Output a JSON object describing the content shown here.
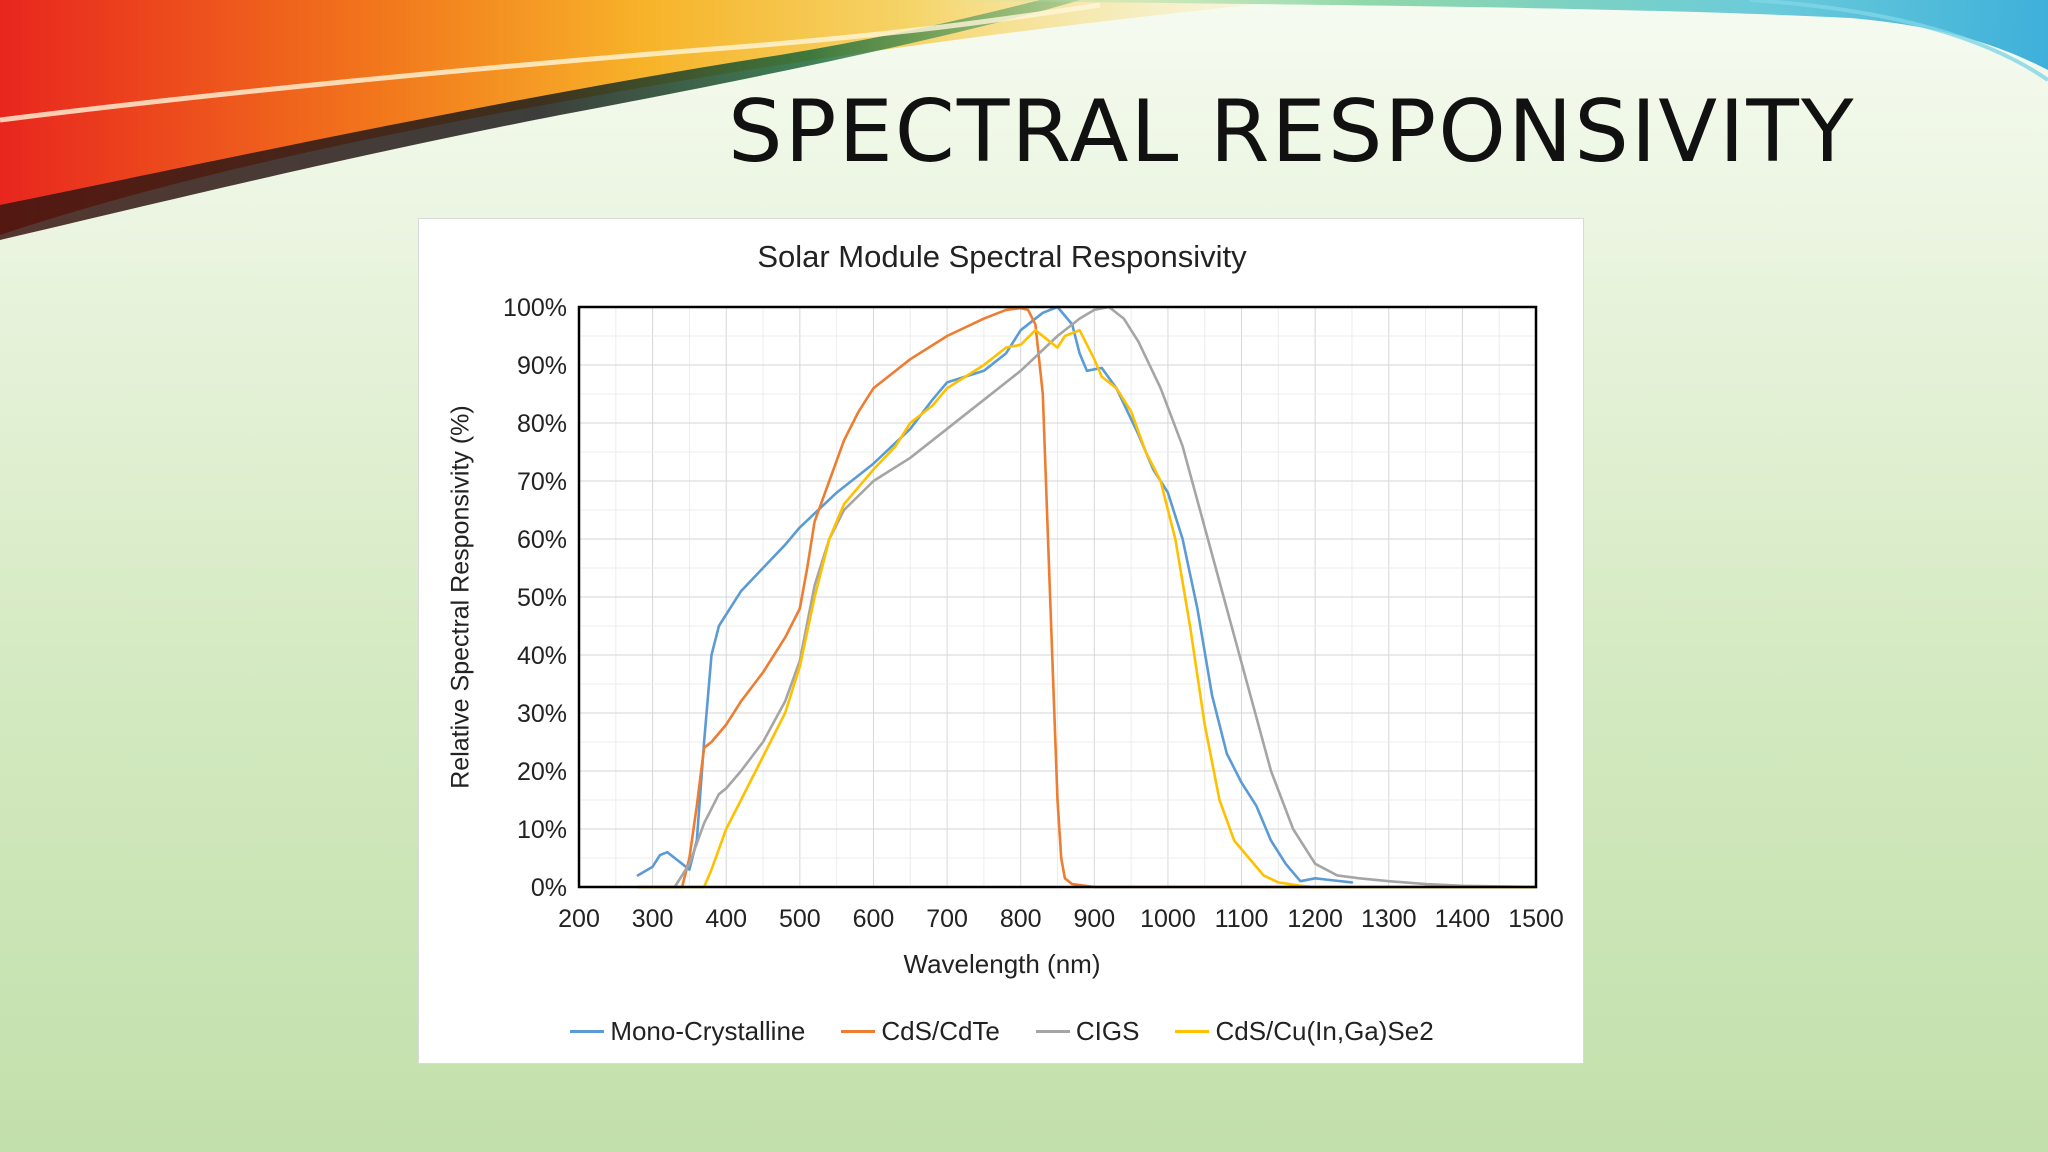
{
  "slide": {
    "title": "SPECTRAL RESPONSIVITY"
  },
  "colors": {
    "Mono-Crystalline": "#5b9bd5",
    "CdS/CdTe": "#ed7d31",
    "CIGS": "#a5a5a5",
    "CdS/Cu(In,Ga)Se2": "#ffc000"
  },
  "chart_data": {
    "type": "line",
    "title": "Solar Module Spectral Responsivity",
    "xlabel": "Wavelength (nm)",
    "ylabel": "Relative Spectral Responsivity (%)",
    "xlim": [
      200,
      1500
    ],
    "ylim": [
      0,
      100
    ],
    "x_ticks": [
      200,
      300,
      400,
      500,
      600,
      700,
      800,
      900,
      1000,
      1100,
      1200,
      1300,
      1400,
      1500
    ],
    "y_ticks": [
      0,
      10,
      20,
      30,
      40,
      50,
      60,
      70,
      80,
      90,
      100
    ],
    "y_tick_labels": [
      "0%",
      "10%",
      "20%",
      "30%",
      "40%",
      "50%",
      "60%",
      "70%",
      "80%",
      "90%",
      "100%"
    ],
    "grid": true,
    "legend": "bottom",
    "series": [
      {
        "name": "Mono-Crystalline",
        "points": [
          [
            280,
            2
          ],
          [
            300,
            3.5
          ],
          [
            310,
            5.5
          ],
          [
            320,
            6
          ],
          [
            330,
            5
          ],
          [
            340,
            4
          ],
          [
            350,
            3
          ],
          [
            360,
            8
          ],
          [
            370,
            25
          ],
          [
            380,
            40
          ],
          [
            390,
            45
          ],
          [
            400,
            47
          ],
          [
            420,
            51
          ],
          [
            450,
            55
          ],
          [
            480,
            59
          ],
          [
            500,
            62
          ],
          [
            550,
            68
          ],
          [
            600,
            73
          ],
          [
            650,
            79
          ],
          [
            680,
            84
          ],
          [
            700,
            87
          ],
          [
            750,
            89
          ],
          [
            780,
            92
          ],
          [
            800,
            96
          ],
          [
            830,
            99
          ],
          [
            850,
            100
          ],
          [
            870,
            97
          ],
          [
            880,
            92
          ],
          [
            890,
            89
          ],
          [
            910,
            89.5
          ],
          [
            930,
            86
          ],
          [
            960,
            78
          ],
          [
            980,
            72
          ],
          [
            1000,
            68
          ],
          [
            1020,
            60
          ],
          [
            1040,
            48
          ],
          [
            1060,
            33
          ],
          [
            1080,
            23
          ],
          [
            1100,
            18
          ],
          [
            1120,
            14
          ],
          [
            1140,
            8
          ],
          [
            1160,
            4
          ],
          [
            1180,
            1
          ],
          [
            1200,
            1.5
          ],
          [
            1220,
            1.2
          ],
          [
            1250,
            0.8
          ]
        ]
      },
      {
        "name": "CdS/CdTe",
        "points": [
          [
            280,
            0
          ],
          [
            340,
            0
          ],
          [
            350,
            5
          ],
          [
            360,
            14
          ],
          [
            370,
            24
          ],
          [
            380,
            25
          ],
          [
            400,
            28
          ],
          [
            420,
            32
          ],
          [
            450,
            37
          ],
          [
            480,
            43
          ],
          [
            500,
            48
          ],
          [
            510,
            55
          ],
          [
            520,
            63
          ],
          [
            540,
            70
          ],
          [
            560,
            77
          ],
          [
            580,
            82
          ],
          [
            600,
            86
          ],
          [
            620,
            88
          ],
          [
            650,
            91
          ],
          [
            700,
            95
          ],
          [
            750,
            98
          ],
          [
            780,
            99.5
          ],
          [
            800,
            99.8
          ],
          [
            810,
            99.5
          ],
          [
            820,
            97
          ],
          [
            830,
            85
          ],
          [
            840,
            50
          ],
          [
            850,
            15
          ],
          [
            855,
            5
          ],
          [
            860,
            1.5
          ],
          [
            870,
            0.5
          ],
          [
            900,
            0
          ],
          [
            1500,
            0
          ]
        ]
      },
      {
        "name": "CIGS",
        "points": [
          [
            330,
            0
          ],
          [
            350,
            4
          ],
          [
            370,
            11
          ],
          [
            390,
            16
          ],
          [
            400,
            17
          ],
          [
            420,
            20
          ],
          [
            450,
            25
          ],
          [
            480,
            32
          ],
          [
            500,
            39
          ],
          [
            520,
            52
          ],
          [
            540,
            60
          ],
          [
            560,
            65
          ],
          [
            600,
            70
          ],
          [
            650,
            74
          ],
          [
            700,
            79
          ],
          [
            750,
            84
          ],
          [
            800,
            89
          ],
          [
            850,
            95
          ],
          [
            880,
            98
          ],
          [
            900,
            99.5
          ],
          [
            920,
            100
          ],
          [
            940,
            98
          ],
          [
            960,
            94
          ],
          [
            990,
            86
          ],
          [
            1020,
            76
          ],
          [
            1050,
            62
          ],
          [
            1080,
            48
          ],
          [
            1110,
            34
          ],
          [
            1140,
            20
          ],
          [
            1170,
            10
          ],
          [
            1200,
            4
          ],
          [
            1230,
            2
          ],
          [
            1260,
            1.5
          ],
          [
            1300,
            1
          ],
          [
            1350,
            0.5
          ],
          [
            1400,
            0.2
          ],
          [
            1500,
            0
          ]
        ]
      },
      {
        "name": "CdS/Cu(In,Ga)Se2",
        "points": [
          [
            280,
            0
          ],
          [
            370,
            0
          ],
          [
            380,
            3
          ],
          [
            400,
            10
          ],
          [
            420,
            15
          ],
          [
            440,
            20
          ],
          [
            460,
            25
          ],
          [
            480,
            30
          ],
          [
            500,
            38
          ],
          [
            520,
            50
          ],
          [
            540,
            60
          ],
          [
            560,
            66
          ],
          [
            600,
            72
          ],
          [
            630,
            76
          ],
          [
            650,
            80
          ],
          [
            680,
            83
          ],
          [
            700,
            86
          ],
          [
            750,
            90
          ],
          [
            780,
            93
          ],
          [
            800,
            93.5
          ],
          [
            820,
            96
          ],
          [
            840,
            94
          ],
          [
            850,
            93
          ],
          [
            860,
            95
          ],
          [
            880,
            96
          ],
          [
            900,
            91
          ],
          [
            910,
            88
          ],
          [
            930,
            86
          ],
          [
            950,
            82
          ],
          [
            970,
            75
          ],
          [
            990,
            70
          ],
          [
            1010,
            60
          ],
          [
            1030,
            45
          ],
          [
            1050,
            28
          ],
          [
            1070,
            15
          ],
          [
            1090,
            8
          ],
          [
            1110,
            5
          ],
          [
            1130,
            2
          ],
          [
            1150,
            0.8
          ],
          [
            1180,
            0.2
          ],
          [
            1200,
            0
          ],
          [
            1500,
            0
          ]
        ]
      }
    ]
  }
}
